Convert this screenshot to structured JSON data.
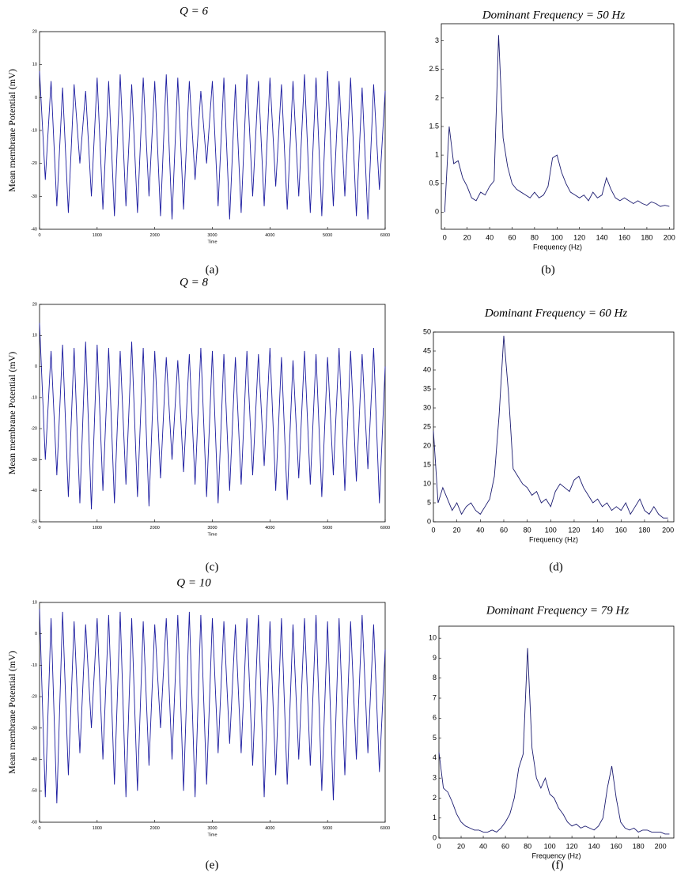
{
  "chart_data": [
    {
      "type": "line",
      "title": "Q = 6",
      "ylabel": "Mean membrane Potential (mV)",
      "xlabel": "Time",
      "caption": "(a)",
      "color": "#1c1ca0",
      "x": [
        0,
        100,
        200,
        300,
        400,
        500,
        600,
        700,
        800,
        900,
        1000,
        1100,
        1200,
        1300,
        1400,
        1500,
        1600,
        1700,
        1800,
        1900,
        2000,
        2100,
        2200,
        2300,
        2400,
        2500,
        2600,
        2700,
        2800,
        2900,
        3000,
        3100,
        3200,
        3300,
        3400,
        3500,
        3600,
        3700,
        3800,
        3900,
        4000,
        4100,
        4200,
        4300,
        4400,
        4500,
        4600,
        4700,
        4800,
        4900,
        5000,
        5100,
        5200,
        5300,
        5400,
        5500,
        5600,
        5700,
        5800,
        5900,
        6000
      ],
      "values": [
        8,
        -25,
        5,
        -33,
        3,
        -35,
        4,
        -20,
        2,
        -30,
        6,
        -34,
        5,
        -36,
        7,
        -33,
        4,
        -35,
        6,
        -30,
        5,
        -36,
        7,
        -37,
        6,
        -34,
        5,
        -25,
        2,
        -20,
        5,
        -33,
        6,
        -37,
        4,
        -35,
        7,
        -30,
        5,
        -33,
        6,
        -27,
        4,
        -34,
        5,
        -30,
        7,
        -35,
        6,
        -36,
        8,
        -33,
        5,
        -30,
        6,
        -36,
        3,
        -37,
        4,
        -28,
        2
      ],
      "xlim": [
        0,
        6000
      ],
      "xticks": [
        0,
        1000,
        2000,
        3000,
        4000,
        5000,
        6000
      ],
      "ylim": [
        -40,
        20
      ],
      "yticks": [
        -40,
        -30,
        -20,
        -10,
        0,
        10,
        20
      ]
    },
    {
      "type": "line",
      "title": "Dominant Frequency = 50 Hz",
      "xlabel": "Frequency (Hz)",
      "caption": "(b)",
      "color": "#1c1c70",
      "x": [
        0,
        4,
        8,
        12,
        16,
        20,
        24,
        28,
        32,
        36,
        40,
        44,
        48,
        52,
        56,
        60,
        64,
        68,
        72,
        76,
        80,
        84,
        88,
        92,
        96,
        100,
        104,
        108,
        112,
        116,
        120,
        124,
        128,
        132,
        136,
        140,
        144,
        148,
        152,
        156,
        160,
        164,
        168,
        172,
        176,
        180,
        184,
        188,
        192,
        196,
        200
      ],
      "values": [
        0.0,
        1.5,
        0.85,
        0.9,
        0.6,
        0.45,
        0.25,
        0.2,
        0.35,
        0.3,
        0.45,
        0.55,
        3.1,
        1.3,
        0.8,
        0.5,
        0.4,
        0.35,
        0.3,
        0.25,
        0.35,
        0.25,
        0.3,
        0.45,
        0.95,
        1.0,
        0.7,
        0.5,
        0.35,
        0.3,
        0.25,
        0.3,
        0.2,
        0.35,
        0.25,
        0.3,
        0.6,
        0.4,
        0.25,
        0.2,
        0.25,
        0.2,
        0.15,
        0.2,
        0.15,
        0.12,
        0.18,
        0.15,
        0.1,
        0.12,
        0.1
      ],
      "xlim": [
        -3,
        204
      ],
      "xticks": [
        0,
        20,
        40,
        60,
        80,
        100,
        120,
        140,
        160,
        180,
        200
      ],
      "ylim": [
        -0.3,
        3.3
      ],
      "yticks": [
        0,
        0.5,
        1,
        1.5,
        2,
        2.5,
        3
      ]
    },
    {
      "type": "line",
      "title": "Q = 8",
      "ylabel": "Mean membrane Potential (mV)",
      "xlabel": "Time",
      "caption": "(c)",
      "color": "#1c1ca0",
      "x": [
        0,
        100,
        200,
        300,
        400,
        500,
        600,
        700,
        800,
        900,
        1000,
        1100,
        1200,
        1300,
        1400,
        1500,
        1600,
        1700,
        1800,
        1900,
        2000,
        2100,
        2200,
        2300,
        2400,
        2500,
        2600,
        2700,
        2800,
        2900,
        3000,
        3100,
        3200,
        3300,
        3400,
        3500,
        3600,
        3700,
        3800,
        3900,
        4000,
        4100,
        4200,
        4300,
        4400,
        4500,
        4600,
        4700,
        4800,
        4900,
        5000,
        5100,
        5200,
        5300,
        5400,
        5500,
        5600,
        5700,
        5800,
        5900,
        6000
      ],
      "values": [
        14,
        -30,
        5,
        -35,
        7,
        -42,
        6,
        -44,
        8,
        -46,
        7,
        -40,
        6,
        -44,
        5,
        -38,
        8,
        -42,
        6,
        -45,
        5,
        -36,
        3,
        -30,
        2,
        -34,
        4,
        -38,
        6,
        -42,
        5,
        -44,
        4,
        -40,
        3,
        -38,
        5,
        -35,
        4,
        -32,
        6,
        -40,
        3,
        -43,
        2,
        -36,
        5,
        -38,
        4,
        -42,
        3,
        -35,
        6,
        -40,
        5,
        -37,
        4,
        -33,
        6,
        -44,
        0
      ],
      "xlim": [
        0,
        6000
      ],
      "xticks": [
        0,
        1000,
        2000,
        3000,
        4000,
        5000,
        6000
      ],
      "ylim": [
        -50,
        20
      ],
      "yticks": [
        -50,
        -40,
        -30,
        -20,
        -10,
        0,
        10,
        20
      ]
    },
    {
      "type": "line",
      "title": "Dominant Frequency = 60 Hz",
      "xlabel": "Frequency (Hz)",
      "caption": "(d)",
      "color": "#1c1c70",
      "x": [
        0,
        4,
        8,
        12,
        16,
        20,
        24,
        28,
        32,
        36,
        40,
        44,
        48,
        52,
        56,
        60,
        64,
        68,
        72,
        76,
        80,
        84,
        88,
        92,
        96,
        100,
        104,
        108,
        112,
        116,
        120,
        124,
        128,
        132,
        136,
        140,
        144,
        148,
        152,
        156,
        160,
        164,
        168,
        172,
        176,
        180,
        184,
        188,
        192,
        196,
        200
      ],
      "values": [
        24,
        5,
        9,
        6,
        3,
        5,
        2,
        4,
        5,
        3,
        2,
        4,
        6,
        12,
        28,
        49,
        34,
        14,
        12,
        10,
        9,
        7,
        8,
        5,
        6,
        4,
        8,
        10,
        9,
        8,
        11,
        12,
        9,
        7,
        5,
        6,
        4,
        5,
        3,
        4,
        3,
        5,
        2,
        4,
        6,
        3,
        2,
        4,
        2,
        1,
        1
      ],
      "xlim": [
        0,
        205
      ],
      "xticks": [
        0,
        20,
        40,
        60,
        80,
        100,
        120,
        140,
        160,
        180,
        200
      ],
      "ylim": [
        0,
        50
      ],
      "yticks": [
        0,
        5,
        10,
        15,
        20,
        25,
        30,
        35,
        40,
        45,
        50
      ]
    },
    {
      "type": "line",
      "title": "Q = 10",
      "ylabel": "Mean membrane Potential (mV)",
      "xlabel": "Time",
      "caption": "(e)",
      "color": "#1c1ca0",
      "x": [
        0,
        100,
        200,
        300,
        400,
        500,
        600,
        700,
        800,
        900,
        1000,
        1100,
        1200,
        1300,
        1400,
        1500,
        1600,
        1700,
        1800,
        1900,
        2000,
        2100,
        2200,
        2300,
        2400,
        2500,
        2600,
        2700,
        2800,
        2900,
        3000,
        3100,
        3200,
        3300,
        3400,
        3500,
        3600,
        3700,
        3800,
        3900,
        4000,
        4100,
        4200,
        4300,
        4400,
        4500,
        4600,
        4700,
        4800,
        4900,
        5000,
        5100,
        5200,
        5300,
        5400,
        5500,
        5600,
        5700,
        5800,
        5900,
        6000
      ],
      "values": [
        8,
        -52,
        5,
        -54,
        7,
        -45,
        4,
        -38,
        3,
        -30,
        5,
        -40,
        6,
        -48,
        7,
        -52,
        5,
        -50,
        4,
        -42,
        3,
        -30,
        5,
        -40,
        6,
        -50,
        7,
        -52,
        6,
        -48,
        5,
        -38,
        4,
        -35,
        3,
        -38,
        5,
        -42,
        6,
        -52,
        4,
        -45,
        5,
        -48,
        3,
        -40,
        5,
        -42,
        6,
        -50,
        4,
        -53,
        5,
        -45,
        4,
        -40,
        6,
        -38,
        3,
        -44,
        -5
      ],
      "xlim": [
        0,
        6000
      ],
      "xticks": [
        0,
        1000,
        2000,
        3000,
        4000,
        5000,
        6000
      ],
      "ylim": [
        -60,
        10
      ],
      "yticks": [
        -60,
        -50,
        -40,
        -30,
        -20,
        -10,
        0,
        10
      ]
    },
    {
      "type": "line",
      "title": "Dominant Frequency = 79 Hz",
      "xlabel": "Frequency (Hz)",
      "caption": "(f)",
      "color": "#1c1c70",
      "x": [
        0,
        4,
        8,
        12,
        16,
        20,
        24,
        28,
        32,
        36,
        40,
        44,
        48,
        52,
        56,
        60,
        64,
        68,
        72,
        76,
        80,
        84,
        88,
        92,
        96,
        100,
        104,
        108,
        112,
        116,
        120,
        124,
        128,
        132,
        136,
        140,
        144,
        148,
        152,
        156,
        160,
        164,
        168,
        172,
        176,
        180,
        184,
        188,
        192,
        196,
        200,
        204,
        208
      ],
      "values": [
        4.3,
        2.5,
        2.3,
        1.8,
        1.2,
        0.8,
        0.6,
        0.5,
        0.4,
        0.4,
        0.3,
        0.3,
        0.4,
        0.3,
        0.5,
        0.8,
        1.2,
        2.0,
        3.5,
        4.2,
        9.5,
        4.5,
        3.0,
        2.5,
        3.0,
        2.2,
        2.0,
        1.5,
        1.2,
        0.8,
        0.6,
        0.7,
        0.5,
        0.6,
        0.5,
        0.4,
        0.6,
        1.0,
        2.5,
        3.6,
        2.0,
        0.8,
        0.5,
        0.4,
        0.5,
        0.3,
        0.4,
        0.4,
        0.3,
        0.3,
        0.3,
        0.2,
        0.2
      ],
      "xlim": [
        0,
        212
      ],
      "xticks": [
        0,
        20,
        40,
        60,
        80,
        100,
        120,
        140,
        160,
        180,
        200
      ],
      "ylim": [
        0,
        10.6
      ],
      "yticks": [
        0,
        1,
        2,
        3,
        4,
        5,
        6,
        7,
        8,
        9,
        10
      ]
    }
  ]
}
